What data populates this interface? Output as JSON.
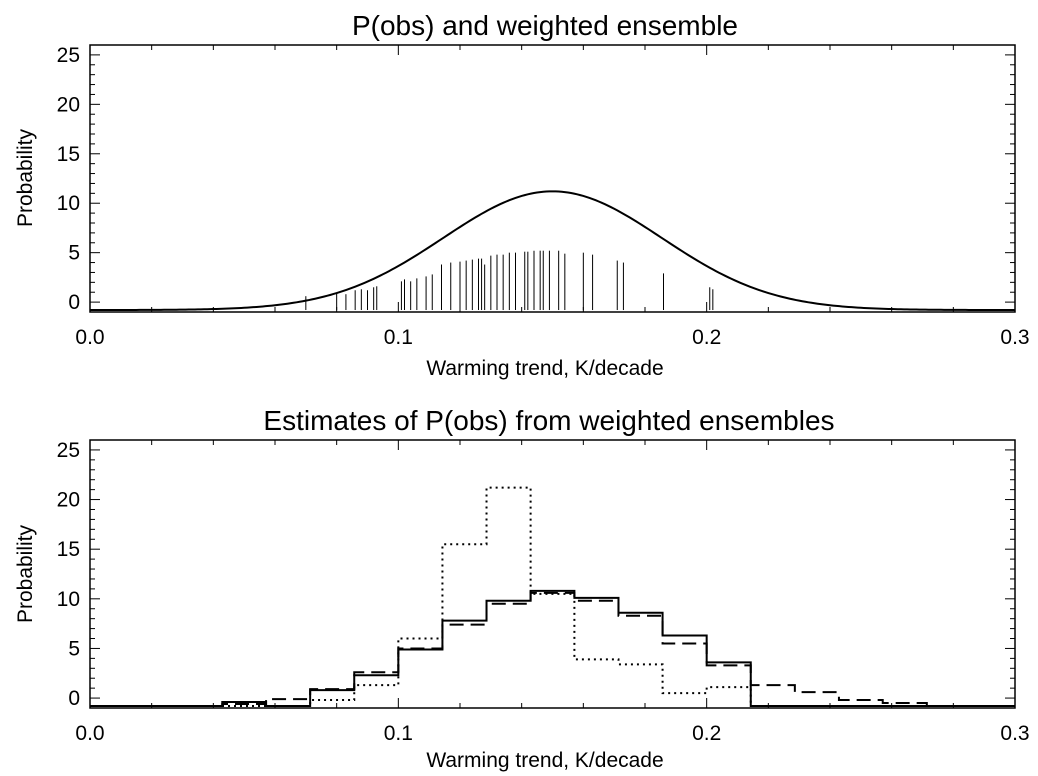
{
  "chart_data": [
    {
      "type": "line",
      "title": "P(obs) and weighted ensemble",
      "xlabel": "Warming trend, K/decade",
      "ylabel": "Probability",
      "xlim": [
        0.0,
        0.3
      ],
      "ylim": [
        -1,
        26
      ],
      "xticks": [
        "0.0",
        "0.1",
        "0.2",
        "0.3"
      ],
      "yticks": [
        "0",
        "5",
        "10",
        "15",
        "20",
        "25"
      ],
      "grid": false,
      "curve": {
        "style": "solid",
        "shape": "gaussian",
        "mean": 0.15,
        "peak": 11.2,
        "sd": 0.0355
      },
      "spikes": {
        "style": "solid",
        "x": [
          0.07,
          0.08,
          0.083,
          0.086,
          0.088,
          0.09,
          0.092,
          0.093,
          0.101,
          0.102,
          0.104,
          0.106,
          0.109,
          0.111,
          0.114,
          0.117,
          0.12,
          0.122,
          0.124,
          0.126,
          0.127,
          0.128,
          0.13,
          0.132,
          0.134,
          0.136,
          0.138,
          0.141,
          0.142,
          0.144,
          0.146,
          0.147,
          0.149,
          0.152,
          0.154,
          0.16,
          0.163,
          0.171,
          0.173,
          0.186,
          0.201,
          0.202
        ],
        "y": [
          0.6,
          0.9,
          0.8,
          1.2,
          1.3,
          1.2,
          1.5,
          1.6,
          2.1,
          2.3,
          2.1,
          2.4,
          2.6,
          2.8,
          3.8,
          4.0,
          4.1,
          4.2,
          4.3,
          4.4,
          4.4,
          3.8,
          4.7,
          4.8,
          4.8,
          5.0,
          5.0,
          5.1,
          5.1,
          5.2,
          5.2,
          5.2,
          5.2,
          5.2,
          4.9,
          5.0,
          4.8,
          4.2,
          4.0,
          2.9,
          1.5,
          1.3
        ]
      }
    },
    {
      "type": "line",
      "title": "Estimates of P(obs) from weighted ensembles",
      "xlabel": "Warming trend, K/decade",
      "ylabel": "Probability",
      "xlim": [
        0.0,
        0.3
      ],
      "ylim": [
        -1,
        26
      ],
      "xticks": [
        "0.0",
        "0.1",
        "0.2",
        "0.3"
      ],
      "yticks": [
        "0",
        "5",
        "10",
        "15",
        "20",
        "25"
      ],
      "grid": false,
      "bin_edges": [
        0.0,
        0.0143,
        0.0286,
        0.0429,
        0.0571,
        0.0714,
        0.0857,
        0.1,
        0.1143,
        0.1286,
        0.1429,
        0.1571,
        0.1714,
        0.1857,
        0.2,
        0.2143,
        0.2286,
        0.2429,
        0.2571,
        0.2714,
        0.2857,
        0.3
      ],
      "series": [
        {
          "style": "solid",
          "values": [
            -0.8,
            -0.8,
            -0.8,
            -0.4,
            -0.8,
            0.8,
            2.3,
            4.9,
            7.8,
            9.8,
            10.8,
            10.1,
            8.6,
            6.3,
            3.6,
            -0.8,
            -0.8,
            -0.8,
            -0.8,
            -0.8,
            -0.8
          ]
        },
        {
          "style": "dashed",
          "values": [
            -0.8,
            -0.8,
            -0.8,
            -0.6,
            -0.1,
            0.9,
            2.6,
            5.0,
            7.4,
            9.5,
            10.6,
            9.8,
            8.3,
            5.5,
            3.3,
            1.3,
            0.6,
            -0.2,
            -0.5,
            -0.8,
            -0.8
          ]
        },
        {
          "style": "dotted",
          "values": [
            -0.8,
            -0.8,
            -0.8,
            -0.8,
            -0.8,
            -0.2,
            1.3,
            6.0,
            15.5,
            21.2,
            10.5,
            3.9,
            3.4,
            0.5,
            1.1,
            -0.8,
            -0.8,
            -0.8,
            -0.8,
            -0.8,
            -0.8
          ]
        }
      ]
    }
  ]
}
